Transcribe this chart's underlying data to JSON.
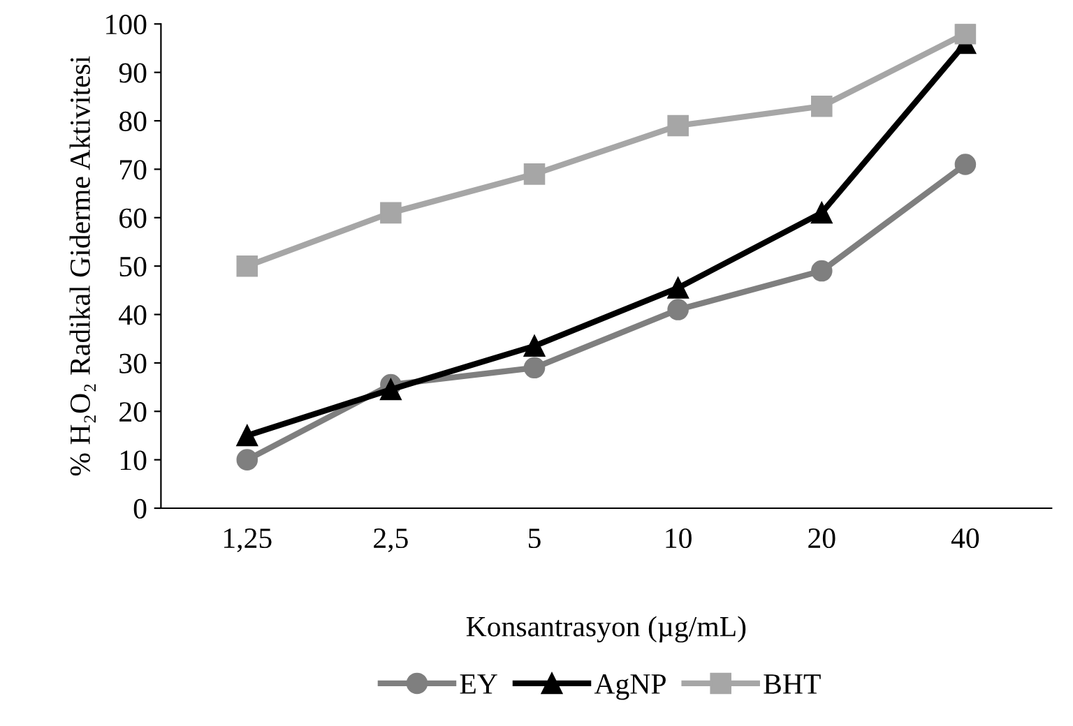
{
  "chart_data": {
    "type": "line",
    "xlabel": "Konsantrasyon (µg/mL)",
    "ylabel": "% H₂O₂ Radikal Giderme Aktivitesi",
    "categories": [
      "1,25",
      "2,5",
      "5",
      "10",
      "20",
      "40"
    ],
    "series": [
      {
        "name": "EY",
        "color": "#7f7f7f",
        "marker": "circle",
        "values": [
          10,
          25.5,
          29,
          41,
          49,
          71
        ]
      },
      {
        "name": "AgNP",
        "color": "#000000",
        "marker": "triangle",
        "values": [
          15,
          24.5,
          33.5,
          45.5,
          61,
          96
        ]
      },
      {
        "name": "BHT",
        "color": "#a6a6a6",
        "marker": "square",
        "values": [
          50,
          61,
          69,
          79,
          83,
          98
        ]
      }
    ],
    "ylim": [
      0,
      100
    ],
    "yticks": [
      0,
      10,
      20,
      30,
      40,
      50,
      60,
      70,
      80,
      90,
      100
    ],
    "grid": false,
    "legend": "bottom",
    "line_style": "solid"
  }
}
